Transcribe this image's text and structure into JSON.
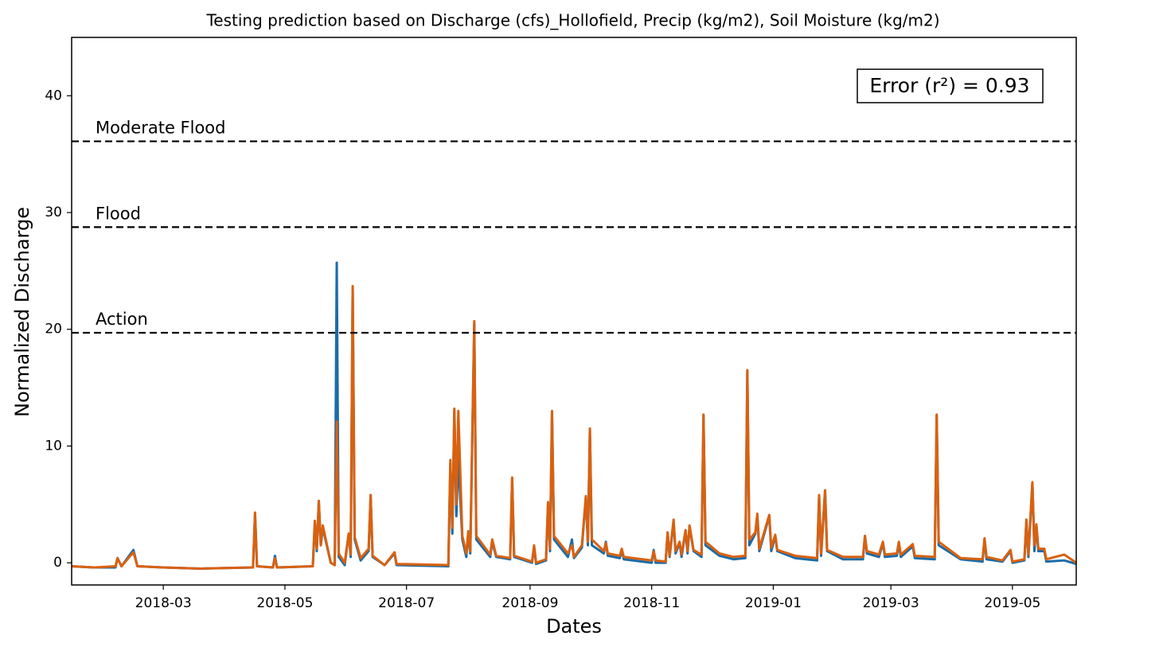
{
  "chart_data": {
    "type": "line",
    "title": "Testing prediction based on Discharge (cfs)_Hollofield, Precip (kg/m2), Soil Moisture (kg/m2)",
    "xlabel": "Dates",
    "ylabel": "Normalized Discharge",
    "annotation": "Error (r²) = 0.93",
    "xlim": [
      "2018-01-14",
      "2019-06-02"
    ],
    "xticks": [
      "2018-03",
      "2018-05",
      "2018-07",
      "2018-09",
      "2018-11",
      "2019-01",
      "2019-03",
      "2019-05"
    ],
    "ylim": [
      -1.9,
      45
    ],
    "yticks": [
      0,
      10,
      20,
      30,
      40
    ],
    "grid": false,
    "thresholds": [
      {
        "value": 36.1,
        "label": "Moderate Flood"
      },
      {
        "value": 28.75,
        "label": "Flood"
      },
      {
        "value": 19.7,
        "label": "Action"
      }
    ],
    "x": [
      "2018-01-14",
      "2018-01-25",
      "2018-02-05",
      "2018-02-06",
      "2018-02-08",
      "2018-02-14",
      "2018-02-16",
      "2018-03-01",
      "2018-03-20",
      "2018-04-15",
      "2018-04-16",
      "2018-04-17",
      "2018-04-25",
      "2018-04-26",
      "2018-04-27",
      "2018-05-15",
      "2018-05-16",
      "2018-05-17",
      "2018-05-18",
      "2018-05-19",
      "2018-05-20",
      "2018-05-24",
      "2018-05-26",
      "2018-05-27",
      "2018-05-28",
      "2018-05-31",
      "2018-06-02",
      "2018-06-03",
      "2018-06-04",
      "2018-06-05",
      "2018-06-08",
      "2018-06-12",
      "2018-06-13",
      "2018-06-14",
      "2018-06-20",
      "2018-06-25",
      "2018-06-26",
      "2018-07-22",
      "2018-07-23",
      "2018-07-24",
      "2018-07-25",
      "2018-07-26",
      "2018-07-27",
      "2018-07-29",
      "2018-07-31",
      "2018-08-01",
      "2018-08-02",
      "2018-08-04",
      "2018-08-05",
      "2018-08-12",
      "2018-08-13",
      "2018-08-15",
      "2018-08-22",
      "2018-08-23",
      "2018-08-24",
      "2018-09-02",
      "2018-09-03",
      "2018-09-04",
      "2018-09-09",
      "2018-09-10",
      "2018-09-11",
      "2018-09-12",
      "2018-09-13",
      "2018-09-20",
      "2018-09-22",
      "2018-09-23",
      "2018-09-27",
      "2018-09-29",
      "2018-09-30",
      "2018-10-01",
      "2018-10-02",
      "2018-10-08",
      "2018-10-09",
      "2018-10-10",
      "2018-10-16",
      "2018-10-17",
      "2018-10-18",
      "2018-11-01",
      "2018-11-02",
      "2018-11-03",
      "2018-11-08",
      "2018-11-09",
      "2018-11-10",
      "2018-11-12",
      "2018-11-13",
      "2018-11-15",
      "2018-11-16",
      "2018-11-18",
      "2018-11-19",
      "2018-11-20",
      "2018-11-22",
      "2018-11-26",
      "2018-11-27",
      "2018-11-28",
      "2018-12-05",
      "2018-12-12",
      "2018-12-18",
      "2018-12-19",
      "2018-12-20",
      "2018-12-23",
      "2018-12-24",
      "2018-12-25",
      "2018-12-30",
      "2018-12-31",
      "2019-01-02",
      "2019-01-03",
      "2019-01-12",
      "2019-01-23",
      "2019-01-24",
      "2019-01-25",
      "2019-01-27",
      "2019-01-28",
      "2019-02-05",
      "2019-02-15",
      "2019-02-16",
      "2019-02-17",
      "2019-02-23",
      "2019-02-25",
      "2019-02-26",
      "2019-03-04",
      "2019-03-05",
      "2019-03-06",
      "2019-03-12",
      "2019-03-13",
      "2019-03-23",
      "2019-03-24",
      "2019-03-25",
      "2019-04-05",
      "2019-04-16",
      "2019-04-17",
      "2019-04-18",
      "2019-04-26",
      "2019-04-30",
      "2019-05-01",
      "2019-05-07",
      "2019-05-08",
      "2019-05-09",
      "2019-05-11",
      "2019-05-12",
      "2019-05-13",
      "2019-05-14",
      "2019-05-17",
      "2019-05-18",
      "2019-05-27",
      "2019-06-02"
    ],
    "series": [
      {
        "color": "#1b6ca8",
        "values": [
          -0.3,
          -0.4,
          -0.4,
          0.4,
          -0.3,
          1.1,
          -0.3,
          -0.4,
          -0.5,
          -0.4,
          4.2,
          -0.3,
          -0.4,
          0.6,
          -0.4,
          -0.3,
          3.4,
          1.0,
          5.3,
          1.5,
          3.0,
          0,
          -0.2,
          25.7,
          0.5,
          -0.2,
          2.5,
          0.5,
          23.5,
          2.0,
          0.2,
          1.0,
          5.8,
          0.5,
          -0.2,
          0.8,
          -0.2,
          -0.3,
          8.5,
          2.5,
          13.0,
          4.0,
          9.0,
          2.0,
          0.5,
          2.5,
          0.8,
          20.5,
          2.0,
          0.5,
          1.8,
          0.5,
          0.3,
          7.2,
          0.5,
          0,
          1.4,
          -0.1,
          0.2,
          5.0,
          1.0,
          12.9,
          2.0,
          0.5,
          2.0,
          0.4,
          1.3,
          5.7,
          1.5,
          11.4,
          1.5,
          0.8,
          1.8,
          0.6,
          0.4,
          1.1,
          0.3,
          0,
          1.1,
          0,
          0,
          2.6,
          0.5,
          3.5,
          0.8,
          1.7,
          0.5,
          2.7,
          0.8,
          3.1,
          1.0,
          0.5,
          12.6,
          1.5,
          0.6,
          0.3,
          0.4,
          16.4,
          1.5,
          2.5,
          4.0,
          1.0,
          4.0,
          1.0,
          2.3,
          1.0,
          0.4,
          0.2,
          5.7,
          0.6,
          6.2,
          1.0,
          0.3,
          0.3,
          2.3,
          0.8,
          0.5,
          1.7,
          0.5,
          0.6,
          1.6,
          0.5,
          1.4,
          0.4,
          0.3,
          12.6,
          1.5,
          0.3,
          0.1,
          2.0,
          0.3,
          0.1,
          1.0,
          0,
          0.2,
          3.6,
          0.5,
          6.8,
          1.0,
          3.2,
          1.0,
          1.0,
          0.1,
          0.2,
          -0.1
        ]
      },
      {
        "color": "#d9610f",
        "values": [
          -0.3,
          -0.4,
          -0.3,
          0.4,
          -0.3,
          0.9,
          -0.3,
          -0.4,
          -0.5,
          -0.4,
          4.3,
          -0.3,
          -0.4,
          0.4,
          -0.4,
          -0.3,
          3.6,
          1.2,
          5.3,
          1.5,
          3.2,
          0,
          -0.2,
          12.1,
          0.8,
          0,
          2.5,
          0.7,
          23.7,
          2.2,
          0.4,
          1.2,
          5.8,
          0.6,
          -0.2,
          0.9,
          -0.1,
          -0.2,
          8.8,
          3.0,
          13.2,
          5.0,
          13.0,
          2.3,
          0.8,
          2.7,
          1.0,
          20.7,
          2.3,
          0.7,
          2.0,
          0.6,
          0.4,
          7.3,
          0.6,
          0.1,
          1.5,
          0,
          0.3,
          5.2,
          1.2,
          13.0,
          2.3,
          0.8,
          1.5,
          0.5,
          1.5,
          5.7,
          1.8,
          11.5,
          2.0,
          1.0,
          1.7,
          0.8,
          0.6,
          1.2,
          0.5,
          0.2,
          1.0,
          0.2,
          0.1,
          2.6,
          0.6,
          3.7,
          1.0,
          1.8,
          0.7,
          2.8,
          1.0,
          3.2,
          1.1,
          0.7,
          12.7,
          1.8,
          0.8,
          0.5,
          0.6,
          16.5,
          2.0,
          2.6,
          4.2,
          1.2,
          4.1,
          1.3,
          2.4,
          1.1,
          0.6,
          0.4,
          5.8,
          0.8,
          6.2,
          1.1,
          0.5,
          0.5,
          2.3,
          1.0,
          0.7,
          1.8,
          0.7,
          0.8,
          1.8,
          0.7,
          1.6,
          0.6,
          0.5,
          12.7,
          1.8,
          0.4,
          0.3,
          2.1,
          0.5,
          0.2,
          1.1,
          0.1,
          0.3,
          3.7,
          0.7,
          6.9,
          1.5,
          3.3,
          1.2,
          1.2,
          0.3,
          0.7,
          0.0
        ]
      }
    ]
  }
}
